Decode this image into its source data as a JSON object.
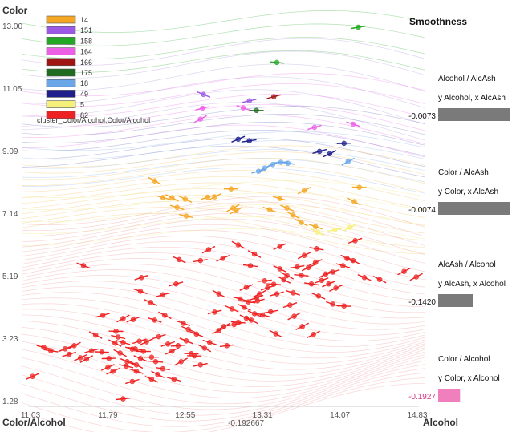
{
  "chart_data": {
    "type": "scatter",
    "xlabel": "Alcohol",
    "ylabel": "Color",
    "corner_label": "Color/Alcohol",
    "center_value": "-0.192667",
    "x_ticks": [
      "11.03",
      "11.79",
      "12.55",
      "13.31",
      "14.07",
      "14.83"
    ],
    "y_ticks": [
      "1.28",
      "3.23",
      "5.19",
      "7.14",
      "9.09",
      "11.05",
      "13.00"
    ],
    "xlim": [
      11.03,
      14.83
    ],
    "ylim": [
      1.28,
      13.0
    ],
    "legend": {
      "title": "cluster_Color/Alcohol;Color/Alcohol",
      "entries": [
        {
          "label": "14",
          "color": "#f5a623"
        },
        {
          "label": "151",
          "color": "#9b59e6"
        },
        {
          "label": "158",
          "color": "#22a822"
        },
        {
          "label": "164",
          "color": "#ee5fe8"
        },
        {
          "label": "166",
          "color": "#a01414"
        },
        {
          "label": "175",
          "color": "#1f6b1f"
        },
        {
          "label": "18",
          "color": "#6aa7e8"
        },
        {
          "label": "49",
          "color": "#1e1e8c"
        },
        {
          "label": "5",
          "color": "#f5f07a"
        },
        {
          "label": "82",
          "color": "#ee2222"
        }
      ]
    },
    "series": [
      {
        "name": "158",
        "color": "#22a822",
        "points": [
          [
            14.25,
            12.95
          ],
          [
            13.45,
            11.85
          ]
        ]
      },
      {
        "name": "151",
        "color": "#9b59e6",
        "points": [
          [
            12.73,
            10.85
          ],
          [
            13.18,
            10.65
          ]
        ]
      },
      {
        "name": "164",
        "color": "#ee5fe8",
        "points": [
          [
            12.72,
            10.42
          ],
          [
            12.7,
            10.08
          ],
          [
            13.12,
            10.43
          ],
          [
            13.82,
            9.82
          ],
          [
            14.2,
            9.92
          ]
        ]
      },
      {
        "name": "166",
        "color": "#a01414",
        "points": [
          [
            13.42,
            10.78
          ]
        ]
      },
      {
        "name": "175",
        "color": "#1f6b1f",
        "points": [
          [
            13.25,
            10.35
          ]
        ]
      },
      {
        "name": "49",
        "color": "#1e1e8c",
        "points": [
          [
            13.07,
            9.45
          ],
          [
            13.18,
            9.4
          ],
          [
            13.87,
            9.07
          ],
          [
            13.97,
            9.0
          ],
          [
            14.11,
            9.32
          ]
        ]
      },
      {
        "name": "18",
        "color": "#6aa7e8",
        "points": [
          [
            13.27,
            8.45
          ],
          [
            13.33,
            8.55
          ],
          [
            13.41,
            8.66
          ],
          [
            13.49,
            8.73
          ],
          [
            13.56,
            8.7
          ],
          [
            14.15,
            8.75
          ]
        ]
      },
      {
        "name": "14",
        "color": "#f5a623",
        "points": [
          [
            12.25,
            8.15
          ],
          [
            12.33,
            7.63
          ],
          [
            12.42,
            7.62
          ],
          [
            12.55,
            7.58
          ],
          [
            12.47,
            7.32
          ],
          [
            12.56,
            7.05
          ],
          [
            12.77,
            7.64
          ],
          [
            12.84,
            7.65
          ],
          [
            13.0,
            7.9
          ],
          [
            13.02,
            7.3
          ],
          [
            13.05,
            7.22
          ],
          [
            13.38,
            7.25
          ],
          [
            13.48,
            7.6
          ],
          [
            13.55,
            7.3
          ],
          [
            13.61,
            7.08
          ],
          [
            13.69,
            6.85
          ],
          [
            13.72,
            7.85
          ],
          [
            13.83,
            6.72
          ],
          [
            14.26,
            7.95
          ],
          [
            14.21,
            7.5
          ]
        ]
      },
      {
        "name": "5",
        "color": "#f5f07a",
        "points": [
          [
            13.85,
            6.55
          ],
          [
            14.02,
            6.62
          ],
          [
            14.17,
            6.7
          ]
        ]
      },
      {
        "name": "82",
        "color": "#ee2222",
        "points": [
          [
            11.05,
            2.04
          ],
          [
            11.16,
            2.95
          ],
          [
            11.23,
            2.84
          ],
          [
            11.37,
            2.9
          ],
          [
            11.41,
            2.73
          ],
          [
            11.46,
            3.0
          ],
          [
            11.52,
            2.62
          ],
          [
            11.58,
            2.58
          ],
          [
            11.63,
            2.84
          ],
          [
            11.67,
            3.33
          ],
          [
            11.73,
            2.8
          ],
          [
            11.8,
            2.6
          ],
          [
            11.84,
            2.2
          ],
          [
            11.86,
            3.08
          ],
          [
            11.91,
            2.77
          ],
          [
            11.94,
            3.1
          ],
          [
            11.98,
            2.5
          ],
          [
            12.03,
            2.89
          ],
          [
            12.07,
            2.2
          ],
          [
            12.07,
            2.4
          ],
          [
            12.1,
            3.14
          ],
          [
            12.11,
            2.6
          ],
          [
            12.14,
            2.82
          ],
          [
            12.17,
            3.12
          ],
          [
            12.22,
            2.64
          ],
          [
            12.26,
            2.5
          ],
          [
            12.29,
            3.28
          ],
          [
            12.33,
            2.28
          ],
          [
            12.38,
            3.05
          ],
          [
            12.42,
            2.83
          ],
          [
            12.48,
            3.0
          ],
          [
            12.51,
            2.5
          ],
          [
            12.56,
            3.15
          ],
          [
            12.58,
            3.51
          ],
          [
            12.61,
            2.75
          ],
          [
            12.66,
            3.36
          ],
          [
            12.7,
            2.4
          ],
          [
            12.74,
            2.92
          ],
          [
            12.79,
            3.1
          ],
          [
            12.84,
            4.05
          ],
          [
            12.88,
            3.47
          ],
          [
            12.93,
            3.6
          ],
          [
            12.96,
            3.0
          ],
          [
            13.01,
            4.15
          ],
          [
            13.03,
            3.66
          ],
          [
            13.07,
            3.73
          ],
          [
            13.09,
            4.46
          ],
          [
            13.13,
            4.2
          ],
          [
            13.15,
            4.82
          ],
          [
            13.17,
            4.37
          ],
          [
            13.2,
            3.8
          ],
          [
            13.23,
            4.0
          ],
          [
            13.26,
            4.4
          ],
          [
            13.28,
            4.62
          ],
          [
            13.31,
            3.96
          ],
          [
            13.33,
            5.03
          ],
          [
            13.36,
            4.81
          ],
          [
            13.39,
            4.06
          ],
          [
            13.42,
            4.92
          ],
          [
            13.45,
            4.62
          ],
          [
            13.48,
            5.4
          ],
          [
            13.52,
            5.06
          ],
          [
            13.55,
            5.19
          ],
          [
            13.58,
            4.27
          ],
          [
            13.61,
            4.65
          ],
          [
            13.65,
            5.46
          ],
          [
            13.69,
            5.2
          ],
          [
            13.72,
            5.82
          ],
          [
            13.76,
            5.44
          ],
          [
            13.79,
            4.93
          ],
          [
            13.83,
            5.6
          ],
          [
            13.86,
            4.55
          ],
          [
            13.89,
            5.04
          ],
          [
            13.93,
            5.24
          ],
          [
            13.96,
            4.93
          ],
          [
            14.0,
            5.3
          ],
          [
            14.03,
            4.8
          ],
          [
            14.1,
            5.5
          ],
          [
            14.14,
            5.72
          ],
          [
            14.2,
            5.66
          ],
          [
            14.31,
            5.13
          ],
          [
            14.46,
            5.07
          ],
          [
            14.7,
            5.32
          ],
          [
            14.82,
            5.15
          ],
          [
            11.94,
            1.34
          ],
          [
            12.21,
            4.35
          ],
          [
            11.55,
            5.5
          ],
          [
            12.22,
            1.95
          ],
          [
            12.44,
            1.95
          ],
          [
            12.03,
            1.88
          ],
          [
            12.28,
            2.1
          ],
          [
            11.74,
            3.95
          ],
          [
            11.94,
            3.85
          ],
          [
            12.04,
            3.82
          ],
          [
            12.25,
            3.8
          ],
          [
            12.33,
            4.59
          ],
          [
            12.78,
            6.0
          ],
          [
            13.07,
            6.15
          ],
          [
            13.23,
            5.86
          ],
          [
            12.92,
            5.73
          ],
          [
            12.7,
            5.66
          ],
          [
            12.49,
            5.69
          ],
          [
            13.84,
            6.03
          ],
          [
            14.22,
            6.28
          ],
          [
            13.48,
            6.1
          ],
          [
            13.19,
            5.5
          ],
          [
            12.12,
            5.13
          ],
          [
            12.11,
            4.7
          ],
          [
            13.81,
            3.35
          ],
          [
            13.62,
            3.92
          ],
          [
            13.44,
            3.37
          ],
          [
            14.0,
            4.3
          ],
          [
            14.11,
            4.24
          ],
          [
            12.46,
            4.93
          ],
          [
            11.79,
            2.32
          ],
          [
            11.97,
            2.36
          ],
          [
            12.06,
            2.9
          ],
          [
            11.87,
            3.45
          ],
          [
            12.64,
            2.68
          ],
          [
            13.15,
            3.86
          ],
          [
            12.88,
            4.62
          ],
          [
            13.7,
            3.6
          ],
          [
            13.25,
            4.5
          ],
          [
            12.53,
            3.7
          ],
          [
            12.35,
            3.95
          ],
          [
            11.89,
            3.27
          ]
        ]
      }
    ]
  },
  "panel": {
    "title": "Smoothness",
    "items": [
      {
        "line1": "Alcohol / AlcAsh",
        "line2": "y Alcohol, x AlcAsh",
        "value": "-0.0073",
        "fraction": 0.98,
        "color": "#7a7a7a",
        "value_color": "#111111"
      },
      {
        "line1": "Color / AlcAsh",
        "line2": "y Color, x AlcAsh",
        "value": "-0.0074",
        "fraction": 0.98,
        "color": "#7a7a7a",
        "value_color": "#111111"
      },
      {
        "line1": "AlcAsh / Alcohol",
        "line2": "y AlcAsh, x Alcohol",
        "value": "-0.1420",
        "fraction": 0.48,
        "color": "#7a7a7a",
        "value_color": "#111111"
      },
      {
        "line1": "Color / Alcohol",
        "line2": "y Color, x Alcohol",
        "value": "-0.1927",
        "fraction": 0.3,
        "color": "#ef7fbd",
        "value_color": "#d63384"
      }
    ]
  }
}
